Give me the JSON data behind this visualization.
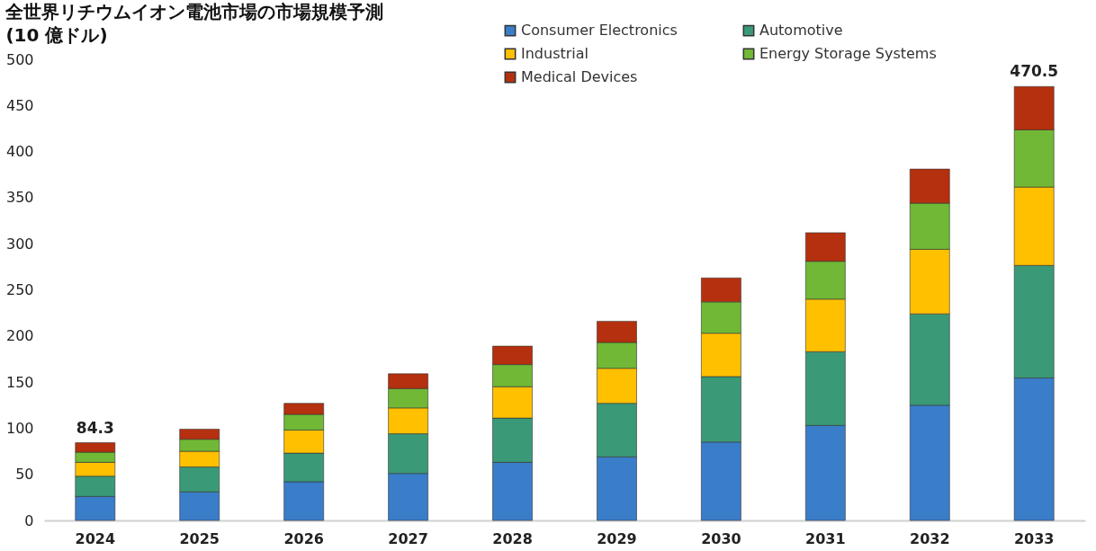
{
  "chart_data": {
    "type": "bar",
    "title": "全世界リチウムイオン電池市場の市場規模予測",
    "subtitle": "(10 億ドル)",
    "categories": [
      "2024",
      "2025",
      "2026",
      "2027",
      "2028",
      "2029",
      "2030",
      "2031",
      "2032",
      "2033"
    ],
    "series": [
      {
        "name": "Consumer Electronics",
        "color": "#3a7dc9",
        "values": [
          26,
          31,
          42,
          51,
          63,
          69,
          85,
          103,
          125,
          154.5
        ]
      },
      {
        "name": "Automotive",
        "color": "#3a9a78",
        "values": [
          22,
          27,
          31,
          43,
          48,
          58,
          71,
          80,
          99,
          122
        ]
      },
      {
        "name": "Industrial",
        "color": "#ffc000",
        "values": [
          15,
          17,
          25,
          28,
          34,
          38,
          47,
          57,
          70,
          85
        ]
      },
      {
        "name": "Energy Storage Systems",
        "color": "#70b835",
        "values": [
          11,
          13,
          17,
          21,
          24,
          28,
          34,
          41,
          50,
          62
        ]
      },
      {
        "name": "Medical Devices",
        "color": "#b5300e",
        "values": [
          10.3,
          11,
          12,
          16,
          20,
          23,
          26,
          31,
          37,
          47
        ]
      }
    ],
    "stacked": true,
    "totals": [
      "84.3",
      null,
      null,
      null,
      null,
      null,
      null,
      null,
      null,
      "470.5"
    ],
    "ylim": [
      0,
      500
    ],
    "yticks": [
      0,
      50,
      100,
      150,
      200,
      250,
      300,
      350,
      400,
      450,
      500
    ],
    "grid": false,
    "legend": "top right"
  }
}
